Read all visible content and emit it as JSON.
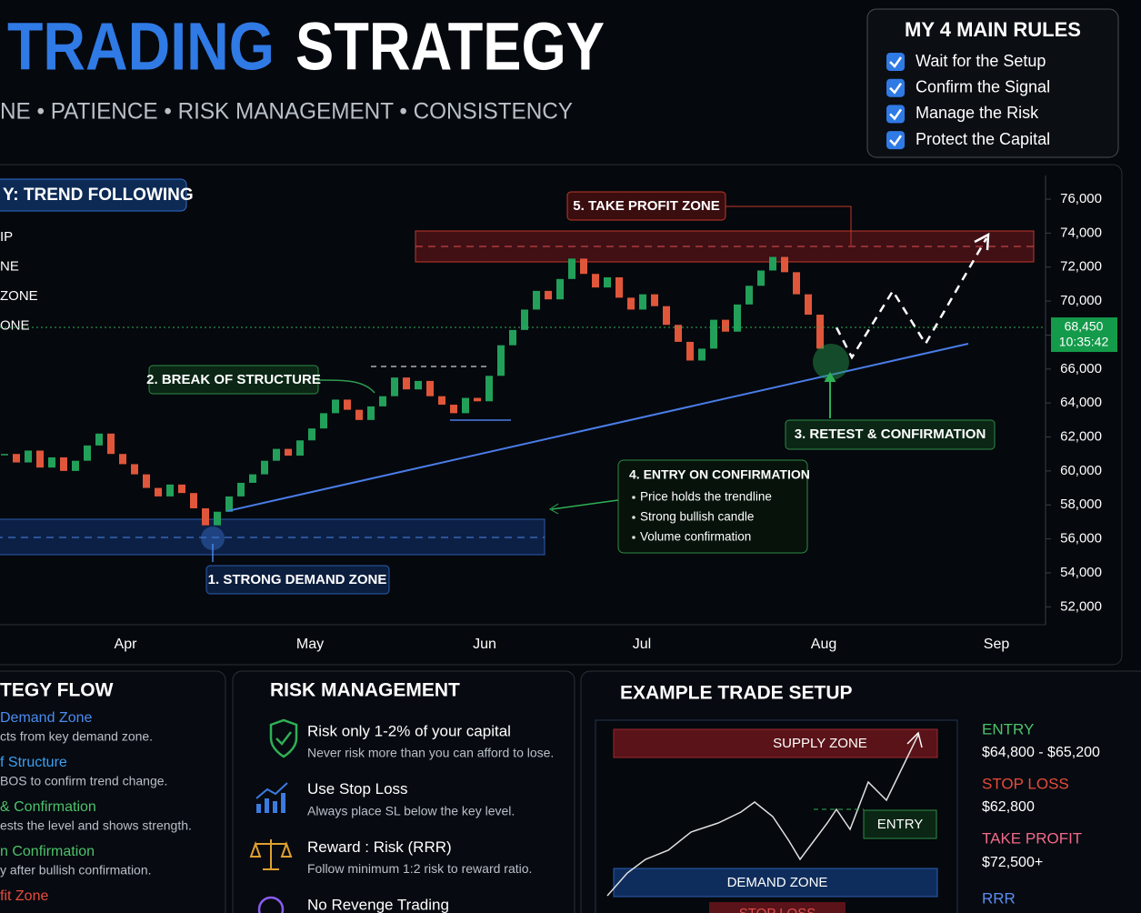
{
  "header": {
    "title_part1": "TRADING",
    "title_part2": "STRATEGY",
    "subtitle": "NE • PATIENCE • RISK MANAGEMENT • CONSISTENCY"
  },
  "rules": {
    "title": "MY 4 MAIN RULES",
    "items": [
      "Wait for the Setup",
      "Confirm the Signal",
      "Manage the Risk",
      "Protect the Capital"
    ]
  },
  "chart_data": {
    "type": "candlestick",
    "title": "Y: TREND FOLLOWING",
    "legend_items": [
      "IP",
      "NE",
      "ZONE",
      "ONE"
    ],
    "values": [
      61000,
      60500,
      61200,
      60200,
      60800,
      60000,
      60600,
      61500,
      62200,
      61000,
      60400,
      59800,
      59000,
      58500,
      59200,
      58700,
      57800,
      56800,
      57600,
      58500,
      59300,
      59800,
      60600,
      61300,
      60900,
      61800,
      62500,
      63400,
      64200,
      63600,
      63000,
      63800,
      64400,
      65500,
      64800,
      65300,
      64400,
      63900,
      63400,
      64300,
      64100,
      65600,
      67400,
      68300,
      69500,
      70600,
      70100,
      71300,
      72500,
      71600,
      70800,
      71400,
      70200,
      69500,
      70400,
      69700,
      68600,
      67600,
      66500,
      67200,
      68900,
      68200,
      69800,
      70900,
      71800,
      72600,
      71700,
      70400,
      69200,
      67200
    ],
    "up_color": "#22a05a",
    "down_color": "#e0563a",
    "ylim": [
      51000,
      77000
    ],
    "yticks": [
      {
        "value": 52000,
        "label": "52,000"
      },
      {
        "value": 54000,
        "label": "54,000"
      },
      {
        "value": 56000,
        "label": "56,000"
      },
      {
        "value": 58000,
        "label": "58,000"
      },
      {
        "value": 60000,
        "label": "60,000"
      },
      {
        "value": 62000,
        "label": "62,000"
      },
      {
        "value": 64000,
        "label": "64,000"
      },
      {
        "value": 66000,
        "label": "66,000"
      },
      {
        "value": 68000,
        "label": "68,000"
      },
      {
        "value": 70000,
        "label": "70,000"
      },
      {
        "value": 72000,
        "label": "72,000"
      },
      {
        "value": 74000,
        "label": "74,000"
      },
      {
        "value": 76000,
        "label": "76,000"
      }
    ],
    "months": [
      "Apr",
      "May",
      "Jun",
      "Jul",
      "Aug",
      "Sep"
    ],
    "current_price": {
      "value": 68450,
      "label": "68,450"
    },
    "clock": "10:35:42",
    "annotations": {
      "take_profit": "5. TAKE PROFIT ZONE",
      "break_of_structure": "2. BREAK OF STRUCTURE",
      "retest": "3. RETEST & CONFIRMATION",
      "demand": "1. STRONG DEMAND ZONE",
      "entry_title": "4. ENTRY ON CONFIRMATION",
      "entry_points": [
        "Price holds the trendline",
        "Strong bullish candle",
        "Volume confirmation"
      ]
    }
  },
  "strategy_flow": {
    "title": "TEGY FLOW",
    "steps": [
      {
        "title": "Demand Zone",
        "desc": "cts from key demand zone."
      },
      {
        "title": "f Structure",
        "desc": "BOS to confirm trend change."
      },
      {
        "title": "& Confirmation",
        "desc": "ests the level and shows strength."
      },
      {
        "title": "n Confirmation",
        "desc": "y after bullish confirmation."
      },
      {
        "title": "fit Zone"
      }
    ]
  },
  "risk_management": {
    "title": "RISK MANAGEMENT",
    "items": [
      {
        "title": "Risk only 1-2% of your capital",
        "desc": "Never risk more than you can afford to lose."
      },
      {
        "title": "Use Stop Loss",
        "desc": "Always place SL below the key level."
      },
      {
        "title": "Reward : Risk (RRR)",
        "desc": "Follow minimum 1:2 risk to reward ratio."
      },
      {
        "title": "No Revenge Trading"
      }
    ]
  },
  "example_trade": {
    "title": "EXAMPLE TRADE SETUP",
    "supply": "SUPPLY ZONE",
    "entry_tag": "ENTRY",
    "demand": "DEMAND ZONE",
    "stop_tag": "STOP LOSS",
    "entry_label": "ENTRY",
    "entry_value": "$64,800 - $65,200",
    "stop_label": "STOP LOSS",
    "stop_value": "$62,800",
    "tp_label": "TAKE PROFIT",
    "tp_value": "$72,500+",
    "rrr_label": "RRR"
  }
}
